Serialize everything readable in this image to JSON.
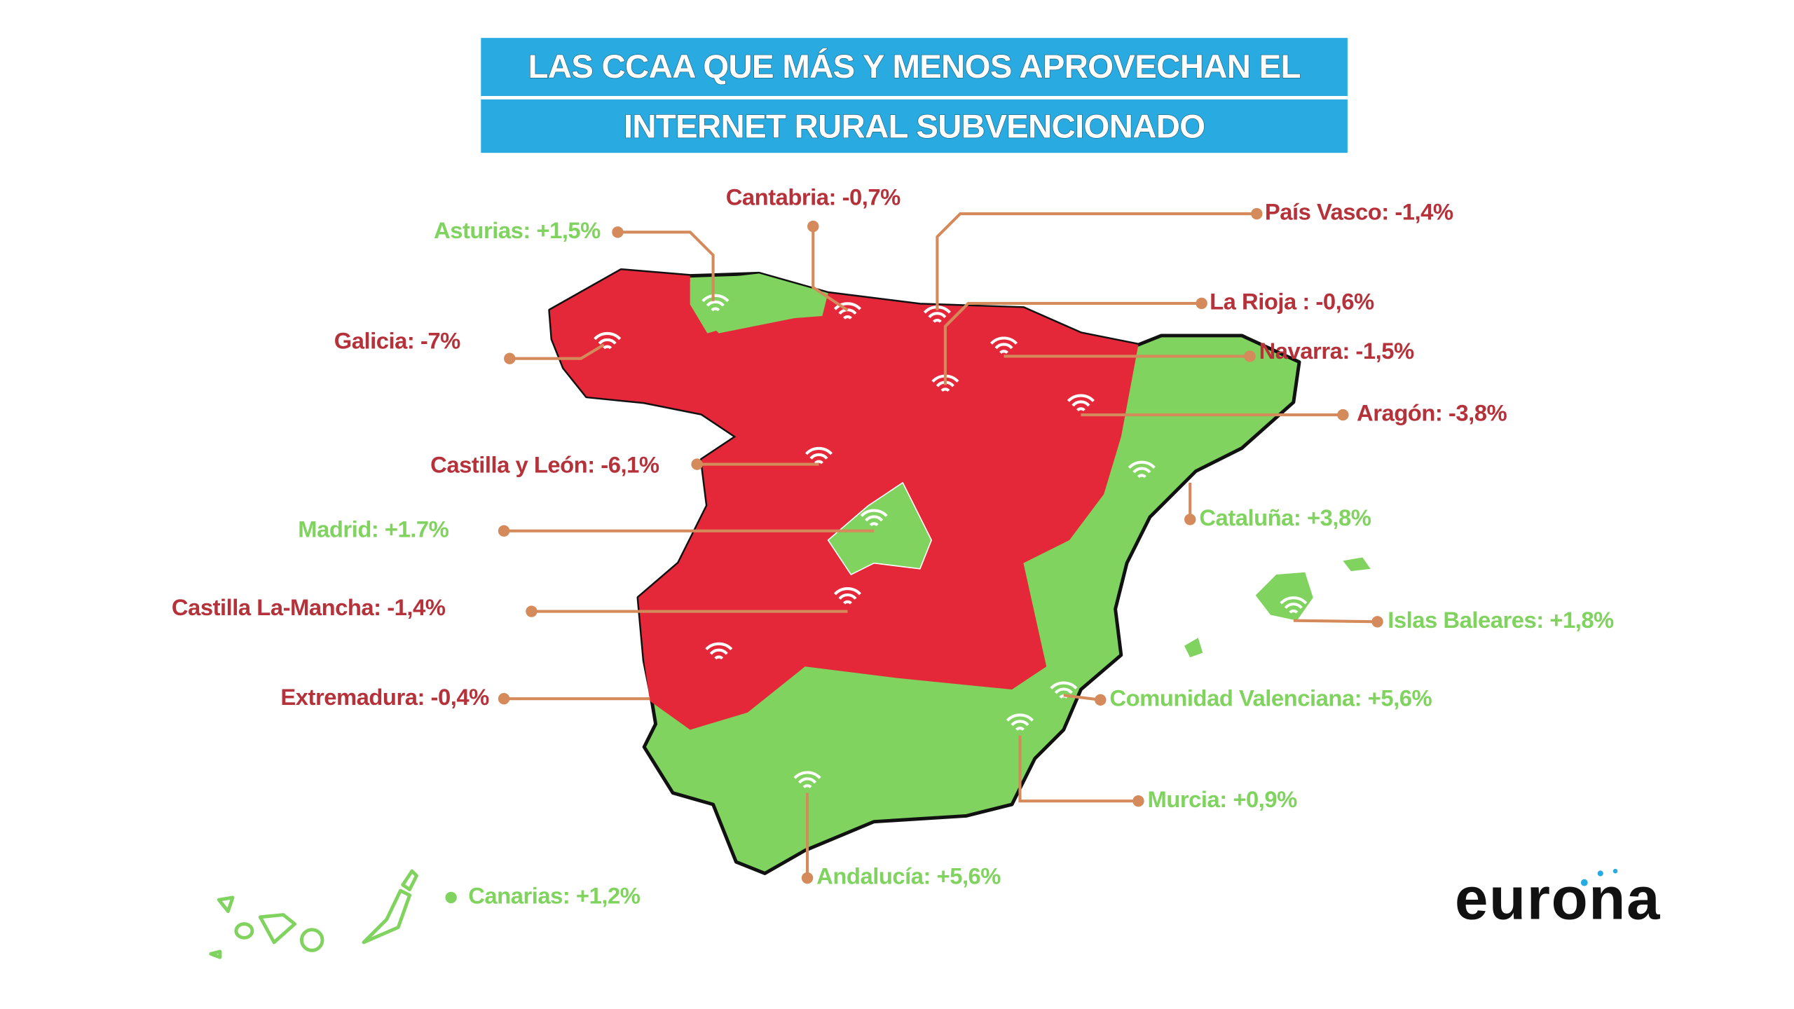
{
  "title": {
    "lines": [
      "LAS CCAA QUE MÁS Y MENOS APROVECHAN EL",
      "INTERNET RURAL SUBVENCIONADO"
    ]
  },
  "regions": [
    {
      "label": "Cantabria: -0,7%",
      "color": "#b5323a"
    },
    {
      "label": "Asturias: +1,5%",
      "color": "#7fd35e"
    },
    {
      "label": "País Vasco: -1,4%",
      "color": "#b5323a"
    },
    {
      "label": "La Rioja : -0,6%",
      "color": "#b5323a"
    },
    {
      "label": "Galicia: -7%",
      "color": "#b5323a"
    },
    {
      "label": "Navarra: -1,5%",
      "color": "#b5323a"
    },
    {
      "label": "Aragón: -3,8%",
      "color": "#b5323a"
    },
    {
      "label": "Castilla y León: -6,1%",
      "color": "#b5323a"
    },
    {
      "label": "Cataluña: +3,8%",
      "color": "#7fd35e"
    },
    {
      "label": "Madrid: +1.7%",
      "color": "#7fd35e"
    },
    {
      "label": "Castilla La-Mancha: -1,4%",
      "color": "#b5323a"
    },
    {
      "label": "Islas Baleares: +1,8%",
      "color": "#7fd35e"
    },
    {
      "label": "Extremadura: -0,4%",
      "color": "#b5323a"
    },
    {
      "label": "Comunidad Valenciana: +5,6%",
      "color": "#7fd35e"
    },
    {
      "label": "Murcia: +0,9%",
      "color": "#7fd35e"
    },
    {
      "label": "Andalucía: +5,6%",
      "color": "#7fd35e"
    },
    {
      "label": "Canarias: +1,2%",
      "color": "#7fd35e"
    }
  ],
  "logo": "eurona"
}
